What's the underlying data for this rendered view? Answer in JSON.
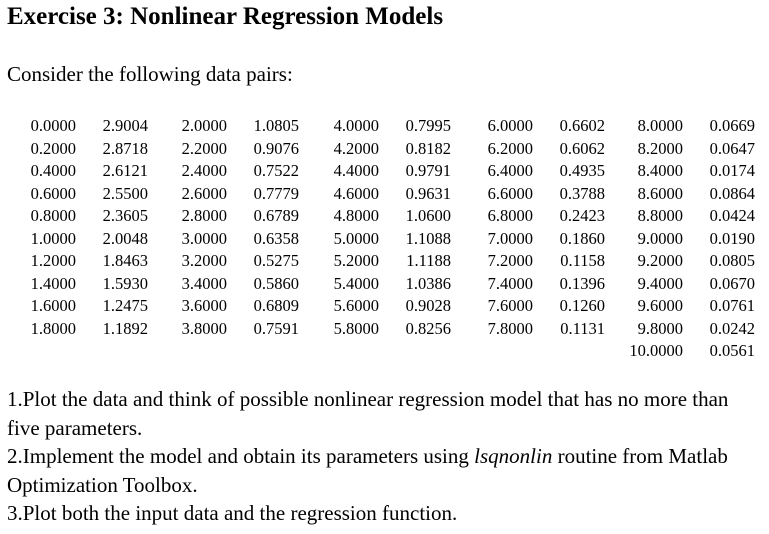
{
  "title": "Exercise 3: Nonlinear Regression Models",
  "intro": "Consider the following data pairs:",
  "data_columns": [
    {
      "rows": [
        {
          "x": "0.0000",
          "y": "2.9004"
        },
        {
          "x": "0.2000",
          "y": "2.8718"
        },
        {
          "x": "0.4000",
          "y": "2.6121"
        },
        {
          "x": "0.6000",
          "y": "2.5500"
        },
        {
          "x": "0.8000",
          "y": "2.3605"
        },
        {
          "x": "1.0000",
          "y": "2.0048"
        },
        {
          "x": "1.2000",
          "y": "1.8463"
        },
        {
          "x": "1.4000",
          "y": "1.5930"
        },
        {
          "x": "1.6000",
          "y": "1.2475"
        },
        {
          "x": "1.8000",
          "y": "1.1892"
        }
      ]
    },
    {
      "rows": [
        {
          "x": "2.0000",
          "y": "1.0805"
        },
        {
          "x": "2.2000",
          "y": "0.9076"
        },
        {
          "x": "2.4000",
          "y": "0.7522"
        },
        {
          "x": "2.6000",
          "y": "0.7779"
        },
        {
          "x": "2.8000",
          "y": "0.6789"
        },
        {
          "x": "3.0000",
          "y": "0.6358"
        },
        {
          "x": "3.2000",
          "y": "0.5275"
        },
        {
          "x": "3.4000",
          "y": "0.5860"
        },
        {
          "x": "3.6000",
          "y": "0.6809"
        },
        {
          "x": "3.8000",
          "y": "0.7591"
        }
      ]
    },
    {
      "rows": [
        {
          "x": "4.0000",
          "y": "0.7995"
        },
        {
          "x": "4.2000",
          "y": "0.8182"
        },
        {
          "x": "4.4000",
          "y": "0.9791"
        },
        {
          "x": "4.6000",
          "y": "0.9631"
        },
        {
          "x": "4.8000",
          "y": "1.0600"
        },
        {
          "x": "5.0000",
          "y": "1.1088"
        },
        {
          "x": "5.2000",
          "y": "1.1188"
        },
        {
          "x": "5.4000",
          "y": "1.0386"
        },
        {
          "x": "5.6000",
          "y": "0.9028"
        },
        {
          "x": "5.8000",
          "y": "0.8256"
        }
      ]
    },
    {
      "rows": [
        {
          "x": "6.0000",
          "y": "0.6602"
        },
        {
          "x": "6.2000",
          "y": "0.6062"
        },
        {
          "x": "6.4000",
          "y": "0.4935"
        },
        {
          "x": "6.6000",
          "y": "0.3788"
        },
        {
          "x": "6.8000",
          "y": "0.2423"
        },
        {
          "x": "7.0000",
          "y": "0.1860"
        },
        {
          "x": "7.2000",
          "y": "0.1158"
        },
        {
          "x": "7.4000",
          "y": "0.1396"
        },
        {
          "x": "7.6000",
          "y": "0.1260"
        },
        {
          "x": "7.8000",
          "y": "0.1131"
        }
      ]
    },
    {
      "rows": [
        {
          "x": "8.0000",
          "y": "0.0669"
        },
        {
          "x": "8.2000",
          "y": "0.0647"
        },
        {
          "x": "8.4000",
          "y": "0.0174"
        },
        {
          "x": "8.6000",
          "y": "0.0864"
        },
        {
          "x": "8.8000",
          "y": "0.0424"
        },
        {
          "x": "9.0000",
          "y": "0.0190"
        },
        {
          "x": "9.2000",
          "y": "0.0805"
        },
        {
          "x": "9.4000",
          "y": "0.0670"
        },
        {
          "x": "9.6000",
          "y": "0.0761"
        },
        {
          "x": "9.8000",
          "y": "0.0242"
        },
        {
          "x": "10.0000",
          "y": "0.0561"
        }
      ]
    }
  ],
  "tasks": [
    {
      "before": "1.Plot the data and think of possible nonlinear regression model that has no more than five parameters.",
      "emphasis": "",
      "after": ""
    },
    {
      "before": "2.Implement the model and obtain its parameters using ",
      "emphasis": "lsqnonlin",
      "after": " routine from Matlab Optimization Toolbox."
    },
    {
      "before": "3.Plot both the input data and the regression function.",
      "emphasis": "",
      "after": ""
    }
  ]
}
